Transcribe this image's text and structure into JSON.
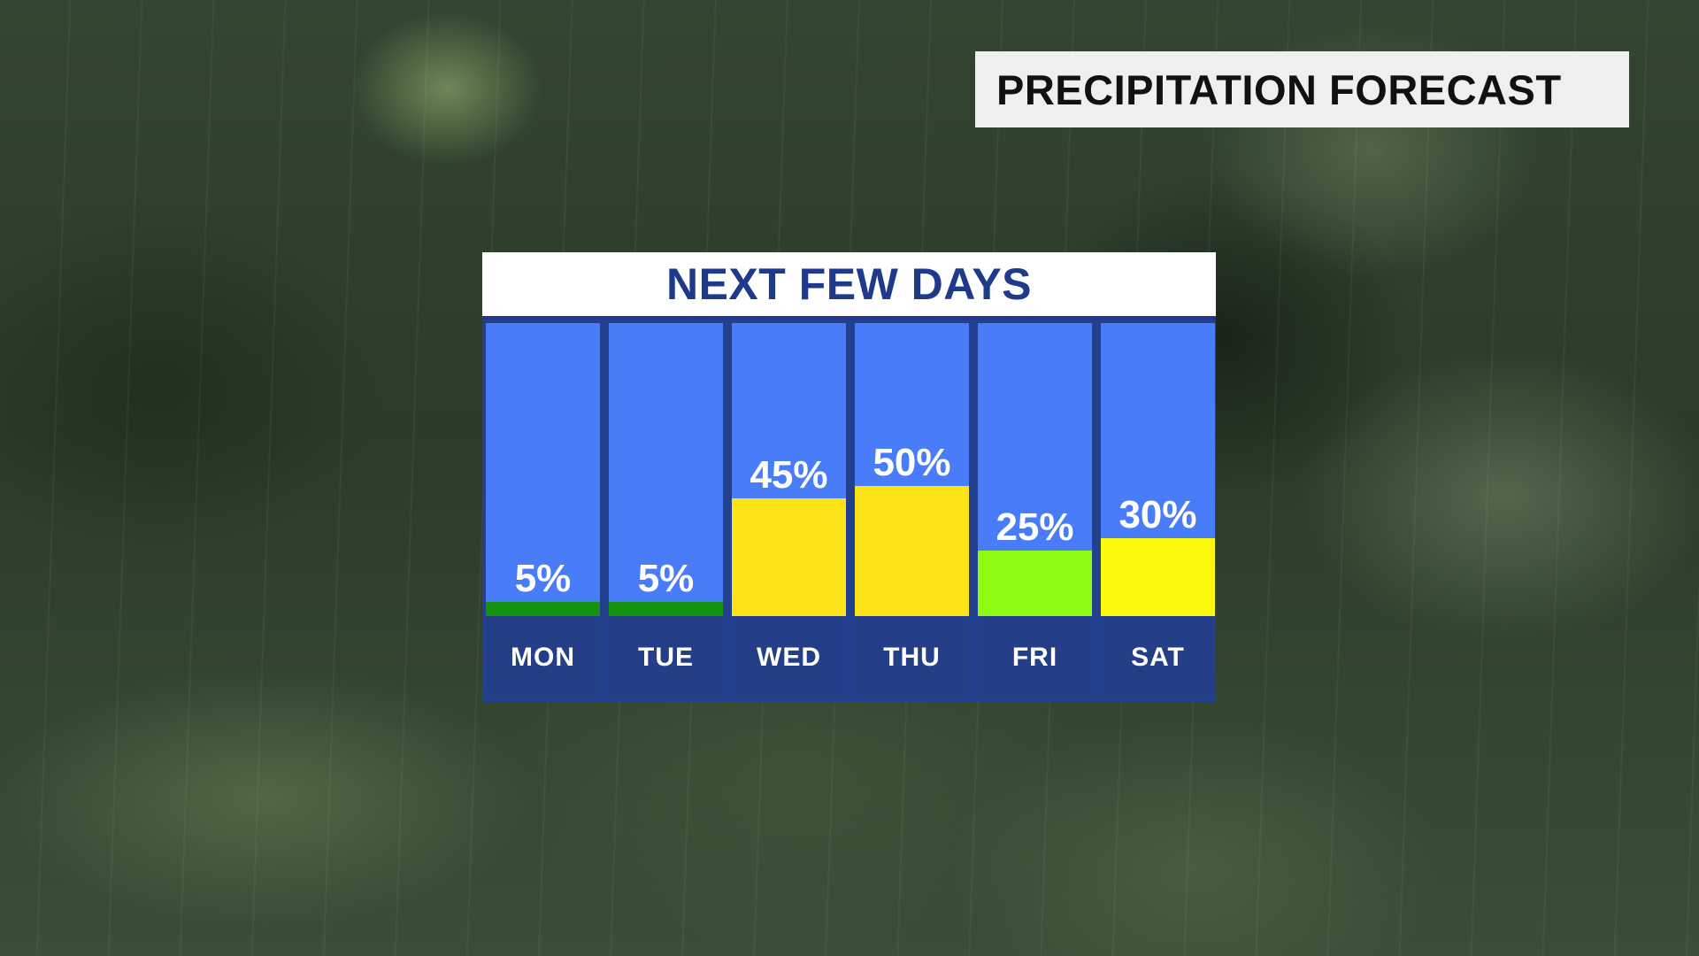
{
  "header": {
    "title": "PRECIPITATION FORECAST"
  },
  "chart_data": {
    "type": "bar",
    "title": "NEXT FEW DAYS",
    "categories": [
      "MON",
      "TUE",
      "WED",
      "THU",
      "FRI",
      "SAT"
    ],
    "values": [
      5,
      5,
      45,
      50,
      25,
      30
    ],
    "value_labels": [
      "5%",
      "5%",
      "45%",
      "50%",
      "25%",
      "30%"
    ],
    "bar_colors": [
      "#149210",
      "#149210",
      "#fde318",
      "#fde318",
      "#8cfc12",
      "#fbf80e"
    ],
    "column_background": "#497cf8",
    "ylim": [
      0,
      100
    ]
  },
  "colors": {
    "accent": "#1f3a8a",
    "day_footer": "#243f88"
  }
}
